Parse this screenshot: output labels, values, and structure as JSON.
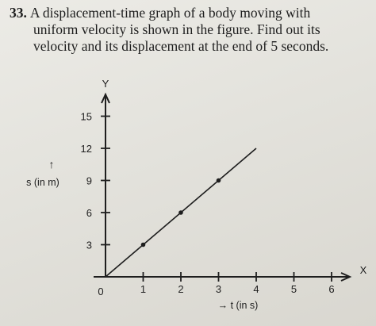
{
  "question": {
    "number": "33.",
    "lines": [
      "A displacement-time graph of a body moving with",
      "uniform velocity is shown in the figure. Find out its",
      "velocity and its displacement at the end of 5 seconds."
    ]
  },
  "chart_data": {
    "type": "line",
    "title": "",
    "xlabel": "→ t (in s)",
    "ylabel_arrow": "↑",
    "ylabel": "s (in m)",
    "x_axis_letter": "X",
    "y_axis_letter": "Y",
    "origin_label": "0",
    "x_ticks": [
      1,
      2,
      3,
      4,
      5,
      6
    ],
    "y_ticks": [
      3,
      6,
      9,
      12,
      15
    ],
    "xlim": [
      0,
      6.5
    ],
    "ylim": [
      0,
      16
    ],
    "grid": false,
    "series": [
      {
        "x": [
          0,
          1,
          2,
          3,
          4
        ],
        "y": [
          0,
          3,
          6,
          9,
          12
        ],
        "markers_at": [
          1,
          2,
          3
        ]
      }
    ]
  }
}
